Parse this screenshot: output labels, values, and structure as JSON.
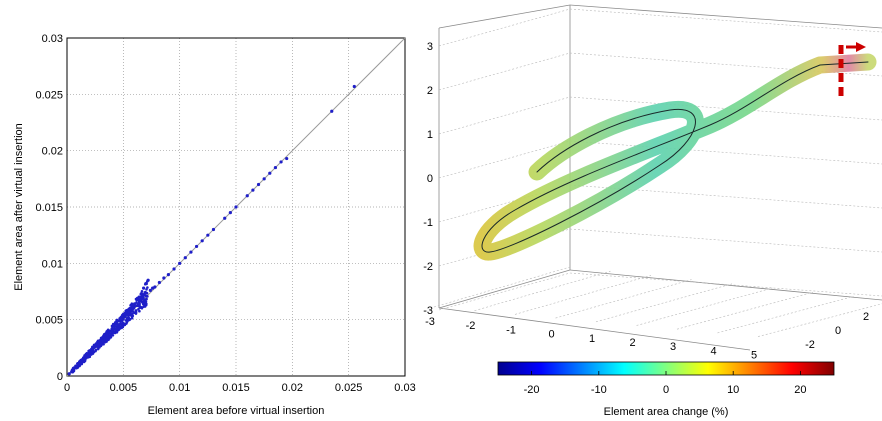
{
  "chart_data": [
    {
      "type": "scatter",
      "xlabel": "Element area before virtual insertion",
      "ylabel": "Element area after virtual insertion",
      "xlim": [
        0,
        0.03
      ],
      "ylim": [
        0,
        0.03
      ],
      "xticks": [
        "0",
        "0.005",
        "0.01",
        "0.015",
        "0.02",
        "0.025",
        "0.03"
      ],
      "yticks": [
        "0",
        "0.005",
        "0.01",
        "0.015",
        "0.02",
        "0.025",
        "0.03"
      ],
      "grid": true,
      "reference_line": {
        "x": [
          0,
          0.03
        ],
        "y": [
          0,
          0.03
        ],
        "color": "#9a9a9a"
      },
      "point_color": "#1f1fc8",
      "points_x": [
        0.0002,
        0.0005,
        0.0008,
        0.001,
        0.0012,
        0.0015,
        0.0017,
        0.002,
        0.0022,
        0.0025,
        0.0027,
        0.003,
        0.0032,
        0.0034,
        0.0036,
        0.0038,
        0.004,
        0.0042,
        0.0044,
        0.0046,
        0.0048,
        0.005,
        0.0052,
        0.0054,
        0.0056,
        0.0058,
        0.006,
        0.0062,
        0.0064,
        0.0066,
        0.0068,
        0.007,
        0.0072,
        0.0074,
        0.0076,
        0.0078,
        0.0082,
        0.0086,
        0.009,
        0.0095,
        0.01,
        0.0105,
        0.011,
        0.0115,
        0.012,
        0.0125,
        0.013,
        0.014,
        0.0145,
        0.015,
        0.016,
        0.0165,
        0.017,
        0.0175,
        0.018,
        0.0185,
        0.019,
        0.0195,
        0.0235,
        0.0255
      ],
      "points_y": [
        0.0002,
        0.0004,
        0.0008,
        0.0011,
        0.0013,
        0.0015,
        0.0018,
        0.0021,
        0.0023,
        0.0026,
        0.0028,
        0.0031,
        0.0033,
        0.0035,
        0.0037,
        0.004,
        0.0042,
        0.0045,
        0.0047,
        0.0049,
        0.0052,
        0.0054,
        0.0056,
        0.0058,
        0.006,
        0.0062,
        0.0064,
        0.0068,
        0.007,
        0.0073,
        0.0078,
        0.0082,
        0.0085,
        0.0076,
        0.0078,
        0.0079,
        0.0083,
        0.0087,
        0.009,
        0.0095,
        0.01,
        0.0105,
        0.011,
        0.0115,
        0.012,
        0.0125,
        0.013,
        0.014,
        0.0145,
        0.015,
        0.016,
        0.0165,
        0.017,
        0.0175,
        0.018,
        0.0185,
        0.019,
        0.0193,
        0.0235,
        0.0257
      ]
    },
    {
      "type": "heatmap",
      "colorbar": {
        "label": "Element area change (%)",
        "ticks": [
          "-20",
          "-10",
          "0",
          "10",
          "20"
        ],
        "range": [
          -25,
          25
        ],
        "colors": [
          "#00008f",
          "#0000ff",
          "#0080ff",
          "#00ffff",
          "#80ff80",
          "#ffff00",
          "#ff8000",
          "#ff0000",
          "#800000"
        ]
      },
      "z_ticks": [
        "3",
        "2",
        "1",
        "0",
        "-1",
        "-2",
        "-3"
      ],
      "x_ticks": [
        "-3",
        "-2",
        "-1",
        "0",
        "1",
        "2",
        "3",
        "4",
        "5"
      ],
      "y_ticks": [
        "-2",
        "0",
        "2"
      ],
      "arrow_color": "#cc0000"
    }
  ]
}
